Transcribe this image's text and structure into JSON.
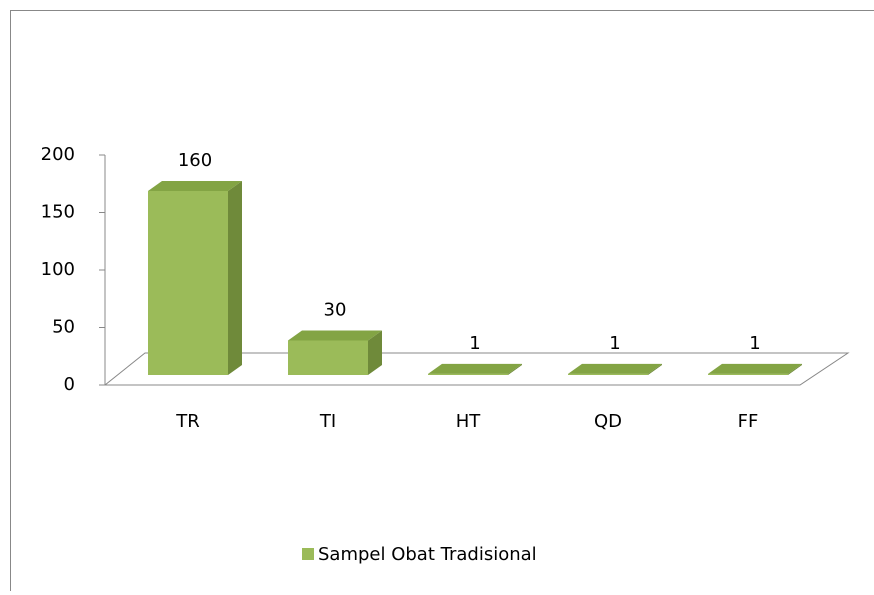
{
  "chart_data": {
    "type": "bar3d",
    "categories": [
      "TR",
      "TI",
      "HT",
      "QD",
      "FF"
    ],
    "series": [
      {
        "name": "Sampel Obat Tradisional",
        "color": "#9bbb59",
        "values": [
          160,
          30,
          1,
          1,
          1
        ]
      }
    ],
    "ylim": [
      0,
      200
    ],
    "yticks": [
      0,
      50,
      100,
      150,
      200
    ],
    "legend": "bottom"
  }
}
